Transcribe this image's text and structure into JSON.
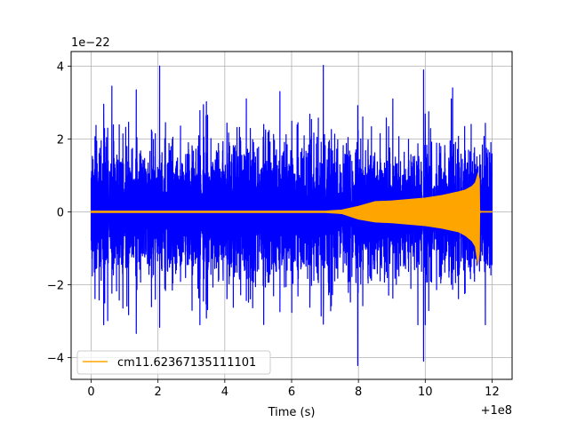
{
  "chart_data": {
    "type": "line",
    "xlabel": "Time (s)",
    "ylabel": "",
    "x_offset_label": "+1e8",
    "y_scale_label": "1e−22",
    "xlim": [
      -0.6,
      12.6
    ],
    "ylim": [
      -4.6,
      4.4
    ],
    "x_ticks": [
      0,
      2,
      4,
      6,
      8,
      10,
      12
    ],
    "x_tick_labels": [
      "0",
      "2",
      "4",
      "6",
      "8",
      "10",
      "12"
    ],
    "y_ticks": [
      -4,
      -2,
      0,
      2,
      4
    ],
    "y_tick_labels": [
      "−4",
      "−2",
      "0",
      "2",
      "4"
    ],
    "grid": true,
    "legend_position": "lower-left",
    "series": [
      {
        "name": "",
        "color": "#0000ff",
        "kind": "noise",
        "x_range": [
          0,
          12
        ],
        "typical_amplitude": 2.0,
        "peak_values": [
          {
            "x": 2.05,
            "y": 4.0
          },
          {
            "x": 6.95,
            "y": 4.02
          },
          {
            "x": 7.98,
            "y": -4.22
          },
          {
            "x": 9.95,
            "y": -4.1
          },
          {
            "x": 0.62,
            "y": 3.45
          },
          {
            "x": 1.35,
            "y": 3.35
          },
          {
            "x": 5.65,
            "y": 3.3
          },
          {
            "x": 10.82,
            "y": 3.4
          }
        ]
      },
      {
        "name": "cm11.62367135111101",
        "color": "#ffa500",
        "kind": "chirp",
        "x": [
          0,
          6.5,
          7.0,
          7.5,
          8.0,
          8.5,
          9.0,
          10.0,
          10.5,
          11.0,
          11.2,
          11.4,
          11.5,
          11.58,
          11.62,
          11.63,
          11.65,
          12.0
        ],
        "envelope_upper": [
          0.02,
          0.02,
          0.02,
          0.05,
          0.15,
          0.28,
          0.3,
          0.38,
          0.45,
          0.55,
          0.6,
          0.7,
          0.8,
          1.05,
          0.9,
          0.05,
          0.01,
          0.01
        ],
        "envelope_lower": [
          -0.02,
          -0.02,
          -0.02,
          -0.05,
          -0.2,
          -0.28,
          -0.3,
          -0.38,
          -0.45,
          -0.55,
          -0.65,
          -0.8,
          -0.95,
          -1.45,
          -1.1,
          -0.05,
          -0.01,
          -0.01
        ]
      }
    ]
  }
}
